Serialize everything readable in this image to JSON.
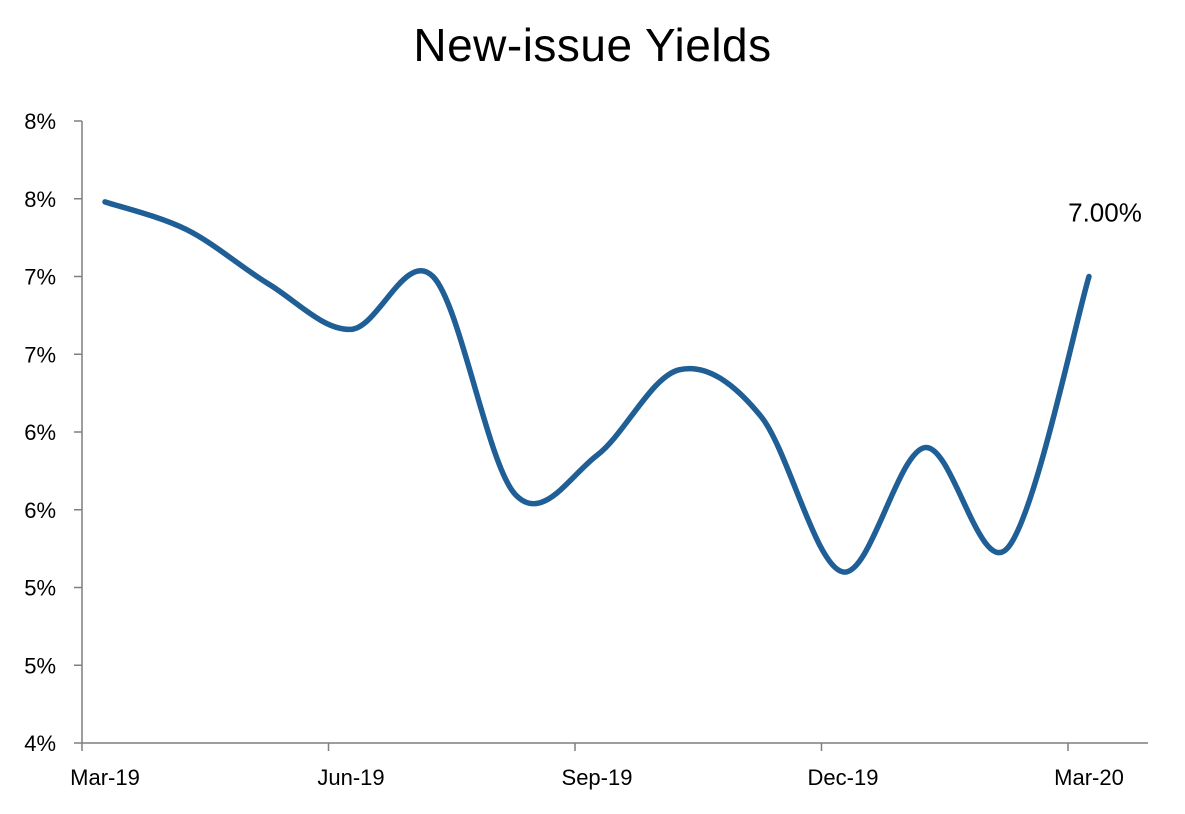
{
  "chart_data": {
    "type": "line",
    "title": "New-issue Yields",
    "xlabel": "",
    "ylabel": "",
    "x_tick_labels": [
      "Mar-19",
      "Jun-19",
      "Sep-19",
      "Dec-19",
      "Mar-20"
    ],
    "y_tick_labels": [
      "4%",
      "5%",
      "5%",
      "6%",
      "6%",
      "7%",
      "7%",
      "8%",
      "8%"
    ],
    "ylim": [
      4.0,
      8.0
    ],
    "ytick_step": 0.5,
    "grid": false,
    "legend": "none",
    "series": [
      {
        "color": "#1f5f96",
        "x": [
          "Mar-19",
          "Apr-19",
          "May-19",
          "Jun-19",
          "Jul-19",
          "Aug-19",
          "Sep-19",
          "Oct-19",
          "Nov-19",
          "Dec-19",
          "Jan-20",
          "Feb-20",
          "Mar-20"
        ],
        "values": [
          7.48,
          7.3,
          6.95,
          6.66,
          7.0,
          5.6,
          5.85,
          6.4,
          6.1,
          5.1,
          5.9,
          5.25,
          7.0
        ]
      }
    ],
    "annotations": [
      {
        "text": "7.00%",
        "point_index": 12
      }
    ]
  }
}
